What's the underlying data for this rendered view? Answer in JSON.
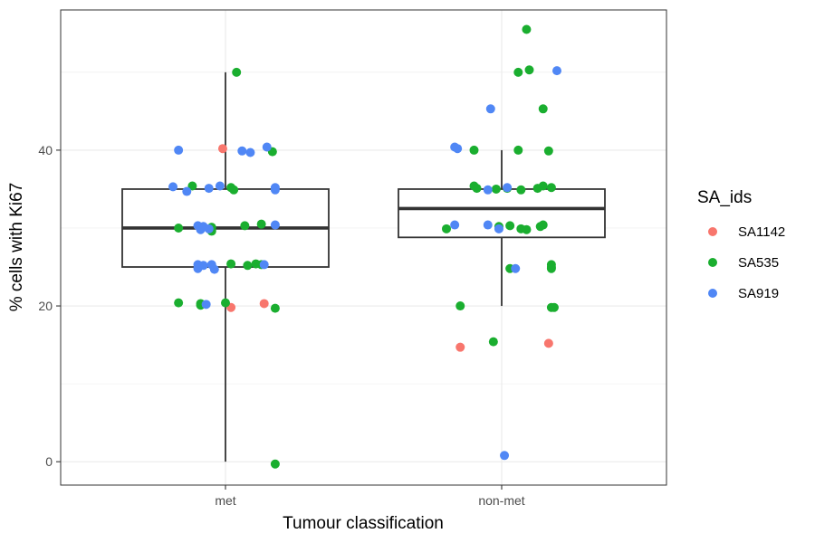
{
  "chart_data": {
    "type": "box+jitter",
    "title": "",
    "xlabel": "Tumour classification",
    "ylabel": "% cells with Ki67",
    "categories": [
      "met",
      "non-met"
    ],
    "ylim": [
      -3,
      58
    ],
    "y_ticks": [
      0,
      20,
      40
    ],
    "grid": true,
    "legend": {
      "title": "SA_ids",
      "position": "right",
      "entries": [
        {
          "name": "SA1142",
          "color": "#F8766D"
        },
        {
          "name": "SA535",
          "color": "#1AAE2F"
        },
        {
          "name": "SA919",
          "color": "#5087F5"
        }
      ]
    },
    "boxes": [
      {
        "category": "met",
        "whisker_low": 0,
        "q1": 25,
        "median": 30,
        "q3": 35,
        "whisker_high": 50
      },
      {
        "category": "non-met",
        "whisker_low": 20,
        "q1": 28.8,
        "median": 32.5,
        "q3": 35,
        "whisker_high": 40
      }
    ],
    "points": [
      {
        "category": "met",
        "x_offset": -0.01,
        "y": 40.2,
        "group": "SA1142"
      },
      {
        "category": "met",
        "x_offset": 0.02,
        "y": 19.8,
        "group": "SA1142"
      },
      {
        "category": "met",
        "x_offset": 0.14,
        "y": 20.3,
        "group": "SA1142"
      },
      {
        "category": "met",
        "x_offset": 0.04,
        "y": 50.0,
        "group": "SA535"
      },
      {
        "category": "met",
        "x_offset": 0.17,
        "y": 39.8,
        "group": "SA535"
      },
      {
        "category": "met",
        "x_offset": -0.12,
        "y": 35.4,
        "group": "SA535"
      },
      {
        "category": "met",
        "x_offset": 0.02,
        "y": 35.2,
        "group": "SA535"
      },
      {
        "category": "met",
        "x_offset": 0.03,
        "y": 34.9,
        "group": "SA535"
      },
      {
        "category": "met",
        "x_offset": -0.17,
        "y": 30.0,
        "group": "SA535"
      },
      {
        "category": "met",
        "x_offset": -0.05,
        "y": 30.1,
        "group": "SA535"
      },
      {
        "category": "met",
        "x_offset": -0.05,
        "y": 29.6,
        "group": "SA535"
      },
      {
        "category": "met",
        "x_offset": 0.07,
        "y": 30.3,
        "group": "SA535"
      },
      {
        "category": "met",
        "x_offset": 0.13,
        "y": 30.5,
        "group": "SA535"
      },
      {
        "category": "met",
        "x_offset": 0.02,
        "y": 25.4,
        "group": "SA535"
      },
      {
        "category": "met",
        "x_offset": 0.08,
        "y": 25.2,
        "group": "SA535"
      },
      {
        "category": "met",
        "x_offset": 0.11,
        "y": 25.4,
        "group": "SA535"
      },
      {
        "category": "met",
        "x_offset": 0.13,
        "y": 25.3,
        "group": "SA535"
      },
      {
        "category": "met",
        "x_offset": -0.17,
        "y": 20.4,
        "group": "SA535"
      },
      {
        "category": "met",
        "x_offset": -0.09,
        "y": 20.1,
        "group": "SA535"
      },
      {
        "category": "met",
        "x_offset": -0.09,
        "y": 20.3,
        "group": "SA535"
      },
      {
        "category": "met",
        "x_offset": 0.0,
        "y": 20.4,
        "group": "SA535"
      },
      {
        "category": "met",
        "x_offset": 0.18,
        "y": 19.7,
        "group": "SA535"
      },
      {
        "category": "met",
        "x_offset": 0.18,
        "y": -0.3,
        "group": "SA535"
      },
      {
        "category": "met",
        "x_offset": -0.17,
        "y": 40.0,
        "group": "SA919"
      },
      {
        "category": "met",
        "x_offset": 0.06,
        "y": 39.9,
        "group": "SA919"
      },
      {
        "category": "met",
        "x_offset": 0.09,
        "y": 39.7,
        "group": "SA919"
      },
      {
        "category": "met",
        "x_offset": 0.15,
        "y": 40.4,
        "group": "SA919"
      },
      {
        "category": "met",
        "x_offset": -0.19,
        "y": 35.3,
        "group": "SA919"
      },
      {
        "category": "met",
        "x_offset": -0.14,
        "y": 34.7,
        "group": "SA919"
      },
      {
        "category": "met",
        "x_offset": -0.06,
        "y": 35.1,
        "group": "SA919"
      },
      {
        "category": "met",
        "x_offset": -0.02,
        "y": 35.4,
        "group": "SA919"
      },
      {
        "category": "met",
        "x_offset": 0.18,
        "y": 35.2,
        "group": "SA919"
      },
      {
        "category": "met",
        "x_offset": 0.18,
        "y": 34.9,
        "group": "SA919"
      },
      {
        "category": "met",
        "x_offset": -0.1,
        "y": 30.3,
        "group": "SA919"
      },
      {
        "category": "met",
        "x_offset": -0.09,
        "y": 29.8,
        "group": "SA919"
      },
      {
        "category": "met",
        "x_offset": -0.08,
        "y": 30.2,
        "group": "SA919"
      },
      {
        "category": "met",
        "x_offset": -0.06,
        "y": 29.9,
        "group": "SA919"
      },
      {
        "category": "met",
        "x_offset": 0.18,
        "y": 30.4,
        "group": "SA919"
      },
      {
        "category": "met",
        "x_offset": -0.1,
        "y": 25.3,
        "group": "SA919"
      },
      {
        "category": "met",
        "x_offset": -0.08,
        "y": 25.2,
        "group": "SA919"
      },
      {
        "category": "met",
        "x_offset": -0.05,
        "y": 25.3,
        "group": "SA919"
      },
      {
        "category": "met",
        "x_offset": -0.04,
        "y": 24.7,
        "group": "SA919"
      },
      {
        "category": "met",
        "x_offset": 0.14,
        "y": 25.3,
        "group": "SA919"
      },
      {
        "category": "met",
        "x_offset": -0.1,
        "y": 24.8,
        "group": "SA919"
      },
      {
        "category": "met",
        "x_offset": -0.07,
        "y": 20.2,
        "group": "SA919"
      },
      {
        "category": "non-met",
        "x_offset": -0.15,
        "y": 14.7,
        "group": "SA1142"
      },
      {
        "category": "non-met",
        "x_offset": 0.17,
        "y": 15.2,
        "group": "SA1142"
      },
      {
        "category": "non-met",
        "x_offset": 0.09,
        "y": 55.5,
        "group": "SA535"
      },
      {
        "category": "non-met",
        "x_offset": 0.06,
        "y": 50.0,
        "group": "SA535"
      },
      {
        "category": "non-met",
        "x_offset": 0.1,
        "y": 50.3,
        "group": "SA535"
      },
      {
        "category": "non-met",
        "x_offset": 0.15,
        "y": 45.3,
        "group": "SA535"
      },
      {
        "category": "non-met",
        "x_offset": -0.1,
        "y": 40.0,
        "group": "SA535"
      },
      {
        "category": "non-met",
        "x_offset": 0.06,
        "y": 40.0,
        "group": "SA535"
      },
      {
        "category": "non-met",
        "x_offset": 0.17,
        "y": 39.9,
        "group": "SA535"
      },
      {
        "category": "non-met",
        "x_offset": -0.1,
        "y": 35.4,
        "group": "SA535"
      },
      {
        "category": "non-met",
        "x_offset": -0.09,
        "y": 35.1,
        "group": "SA535"
      },
      {
        "category": "non-met",
        "x_offset": -0.02,
        "y": 35.0,
        "group": "SA535"
      },
      {
        "category": "non-met",
        "x_offset": 0.02,
        "y": 35.1,
        "group": "SA535"
      },
      {
        "category": "non-met",
        "x_offset": 0.07,
        "y": 34.9,
        "group": "SA535"
      },
      {
        "category": "non-met",
        "x_offset": 0.13,
        "y": 35.1,
        "group": "SA535"
      },
      {
        "category": "non-met",
        "x_offset": 0.15,
        "y": 35.4,
        "group": "SA535"
      },
      {
        "category": "non-met",
        "x_offset": 0.18,
        "y": 35.2,
        "group": "SA535"
      },
      {
        "category": "non-met",
        "x_offset": -0.2,
        "y": 29.9,
        "group": "SA535"
      },
      {
        "category": "non-met",
        "x_offset": -0.01,
        "y": 30.2,
        "group": "SA535"
      },
      {
        "category": "non-met",
        "x_offset": 0.03,
        "y": 30.3,
        "group": "SA535"
      },
      {
        "category": "non-met",
        "x_offset": 0.07,
        "y": 29.9,
        "group": "SA535"
      },
      {
        "category": "non-met",
        "x_offset": 0.09,
        "y": 29.8,
        "group": "SA535"
      },
      {
        "category": "non-met",
        "x_offset": 0.14,
        "y": 30.2,
        "group": "SA535"
      },
      {
        "category": "non-met",
        "x_offset": 0.15,
        "y": 30.4,
        "group": "SA535"
      },
      {
        "category": "non-met",
        "x_offset": 0.03,
        "y": 24.8,
        "group": "SA535"
      },
      {
        "category": "non-met",
        "x_offset": 0.18,
        "y": 25.3,
        "group": "SA535"
      },
      {
        "category": "non-met",
        "x_offset": 0.18,
        "y": 24.8,
        "group": "SA535"
      },
      {
        "category": "non-met",
        "x_offset": 0.18,
        "y": 25.0,
        "group": "SA535"
      },
      {
        "category": "non-met",
        "x_offset": -0.15,
        "y": 20.0,
        "group": "SA535"
      },
      {
        "category": "non-met",
        "x_offset": 0.18,
        "y": 19.8,
        "group": "SA535"
      },
      {
        "category": "non-met",
        "x_offset": 0.19,
        "y": 19.8,
        "group": "SA535"
      },
      {
        "category": "non-met",
        "x_offset": -0.03,
        "y": 15.4,
        "group": "SA535"
      },
      {
        "category": "non-met",
        "x_offset": -0.17,
        "y": 40.4,
        "group": "SA919"
      },
      {
        "category": "non-met",
        "x_offset": -0.16,
        "y": 40.2,
        "group": "SA919"
      },
      {
        "category": "non-met",
        "x_offset": 0.2,
        "y": 50.2,
        "group": "SA919"
      },
      {
        "category": "non-met",
        "x_offset": -0.04,
        "y": 45.3,
        "group": "SA919"
      },
      {
        "category": "non-met",
        "x_offset": -0.05,
        "y": 34.9,
        "group": "SA919"
      },
      {
        "category": "non-met",
        "x_offset": -0.17,
        "y": 30.4,
        "group": "SA919"
      },
      {
        "category": "non-met",
        "x_offset": -0.05,
        "y": 30.4,
        "group": "SA919"
      },
      {
        "category": "non-met",
        "x_offset": -0.01,
        "y": 29.9,
        "group": "SA919"
      },
      {
        "category": "non-met",
        "x_offset": 0.05,
        "y": 24.8,
        "group": "SA919"
      },
      {
        "category": "non-met",
        "x_offset": 0.02,
        "y": 35.2,
        "group": "SA919"
      },
      {
        "category": "non-met",
        "x_offset": 0.01,
        "y": 0.8,
        "group": "SA919"
      }
    ]
  }
}
